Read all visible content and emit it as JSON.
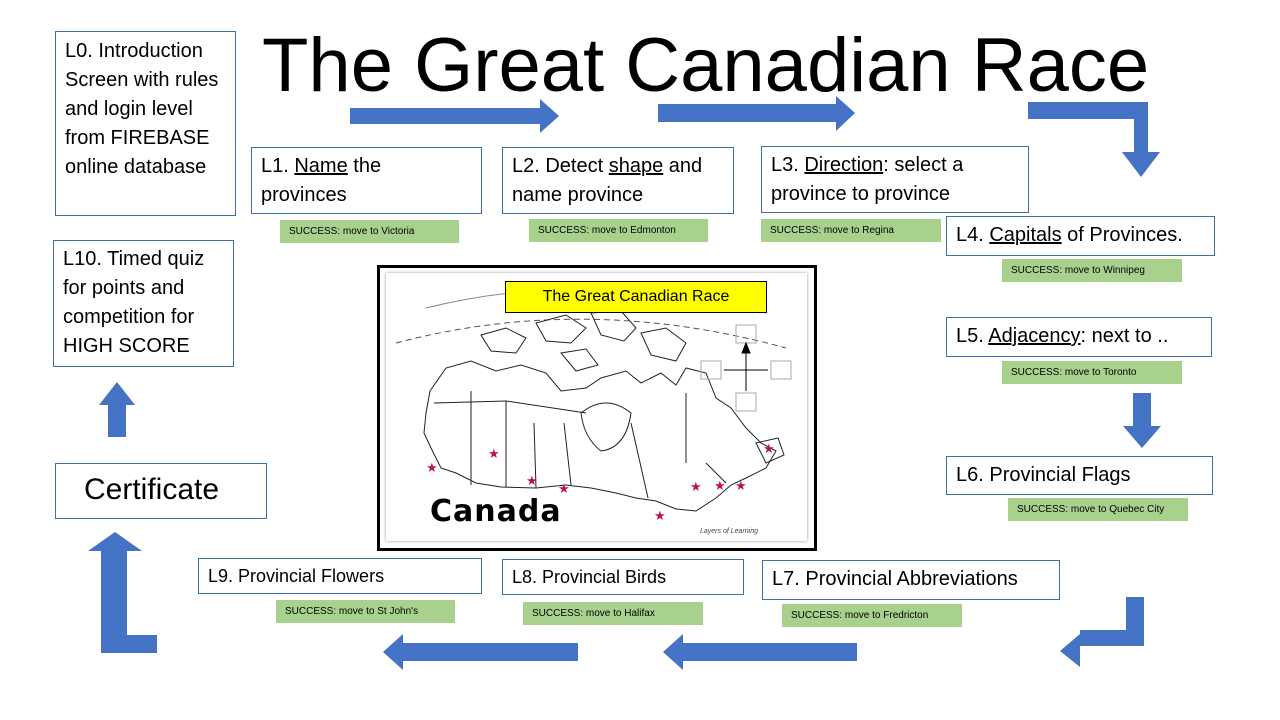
{
  "title": "The Great Canadian Race",
  "levels": {
    "l0": "L0.  Introduction Screen with rules and login level from FIREBASE online database",
    "l1": {
      "prefix": "L1.  ",
      "key": "Name",
      "rest": " the provinces"
    },
    "l2": {
      "prefix": "L2.  Detect ",
      "key": "shape",
      "rest": " and name province"
    },
    "l3": {
      "prefix": "L3.  ",
      "key": "Direction",
      "rest": ": select a province to province"
    },
    "l4": {
      "prefix": "L4. ",
      "key": "Capitals",
      "rest": " of Provinces."
    },
    "l5": {
      "prefix": "L5.  ",
      "key": "Adjacency",
      "rest": ":  next to .."
    },
    "l6": "L6.  Provincial Flags",
    "l7": "L7. Provincial Abbreviations",
    "l8": "L8. Provincial Birds",
    "l9": "L9.  Provincial Flowers",
    "l10": "L10.  Timed quiz for points and competition for HIGH SCORE",
    "certificate": "Certificate"
  },
  "success": {
    "l1": "SUCCESS: move to Victoria",
    "l2": "SUCCESS: move to Edmonton",
    "l3": "SUCCESS: move to Regina",
    "l4": "SUCCESS: move to Winnipeg",
    "l5": "SUCCESS: move to Toronto",
    "l6": "SUCCESS: move to Quebec City",
    "l7": "SUCCESS: move to Fredricton",
    "l8": "SUCCESS: move to Halifax",
    "l9": "SUCCESS: move to St John's"
  },
  "map": {
    "banner": "The Great Canadian Race",
    "word": "Canada",
    "credit": "Layers of Learning"
  },
  "colors": {
    "arrow": "#4472c4",
    "box_border": "#3f6fa8",
    "success_fill": "#a9d18e",
    "banner_fill": "#ffff00",
    "star": "#c0143c"
  }
}
